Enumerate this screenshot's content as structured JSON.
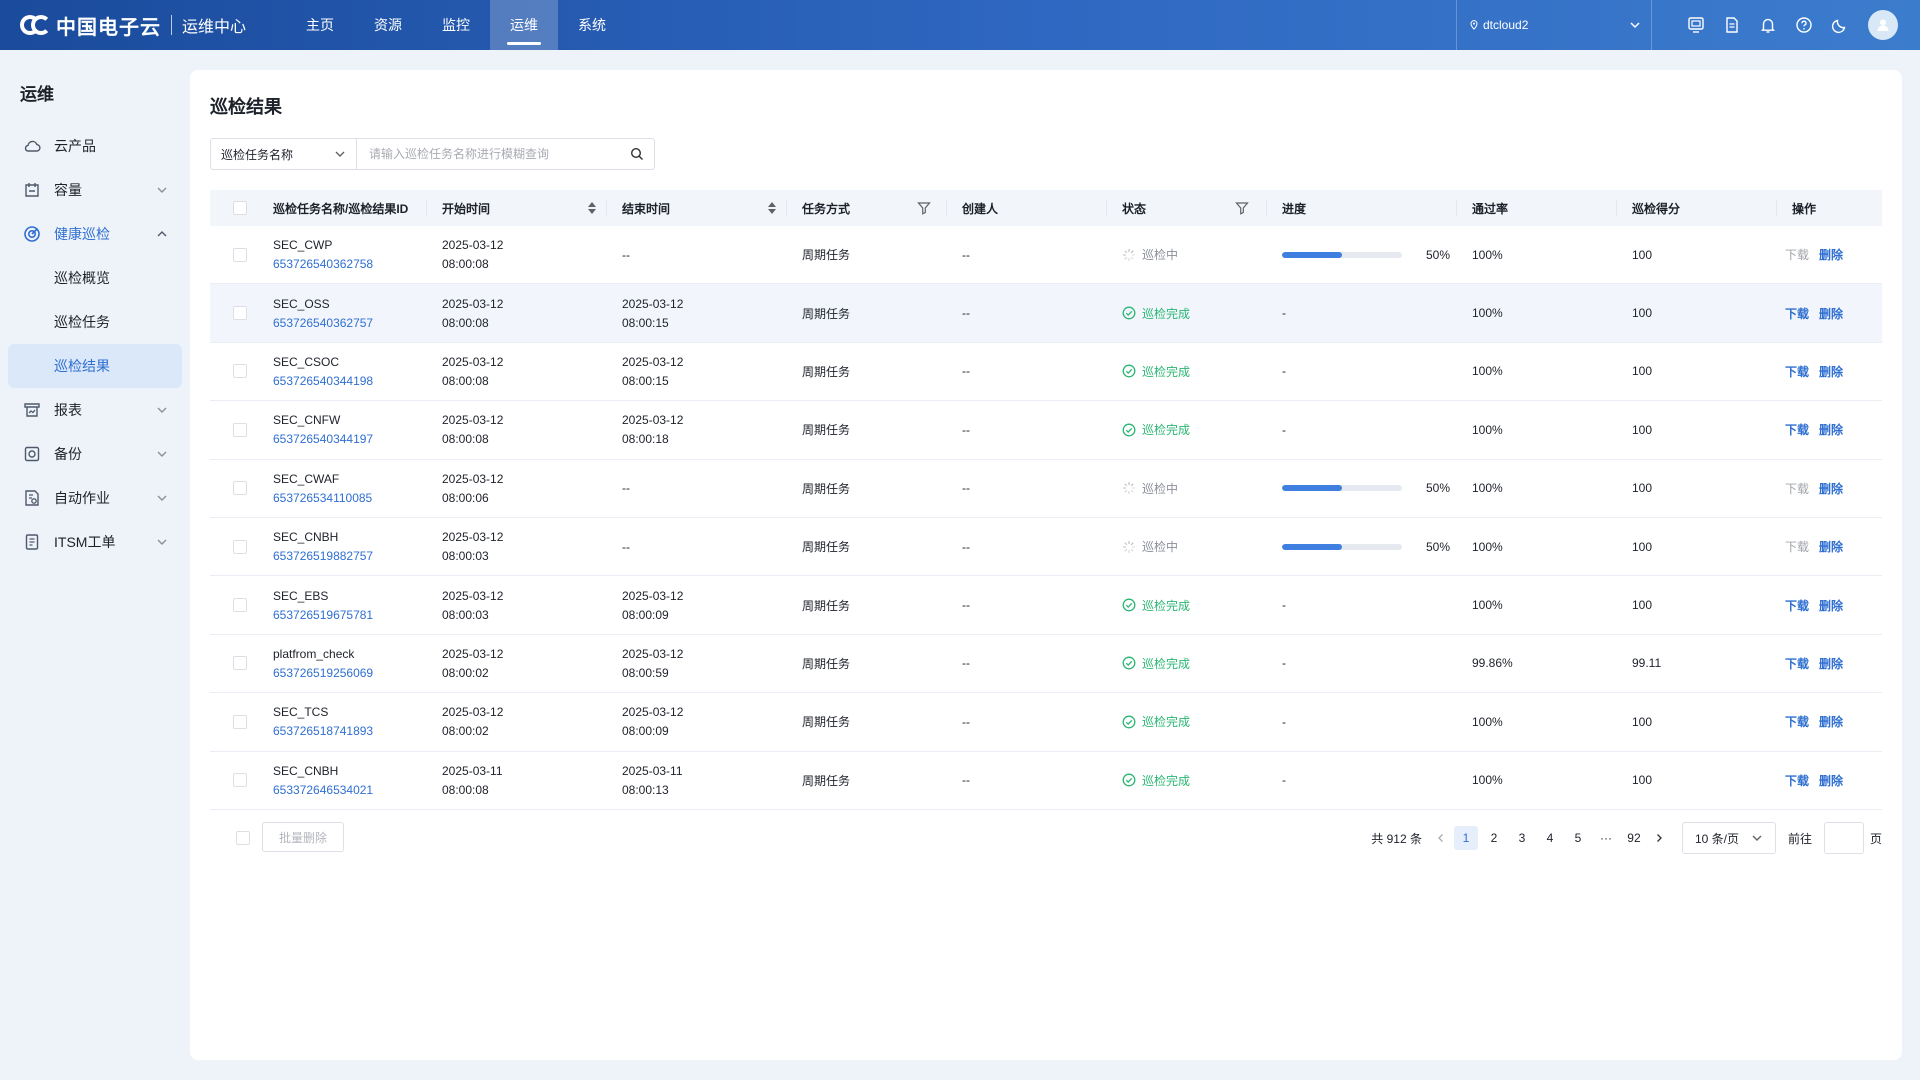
{
  "header": {
    "logo_text": "中国电子云",
    "logo_sub": "运维中心",
    "nav": [
      "主页",
      "资源",
      "监控",
      "运维",
      "系统"
    ],
    "nav_active": 3,
    "account": "dtcloud2",
    "icons": [
      "screen-icon",
      "document-icon",
      "bell-icon",
      "help-icon",
      "moon-icon"
    ]
  },
  "sidebar": {
    "title": "运维",
    "items": [
      {
        "label": "云产品",
        "icon": "cloud-icon"
      },
      {
        "label": "容量",
        "icon": "capacity-icon"
      },
      {
        "label": "健康巡检",
        "icon": "health-check-icon"
      },
      {
        "label": "报表",
        "icon": "report-icon"
      },
      {
        "label": "备份",
        "icon": "backup-icon"
      },
      {
        "label": "自动作业",
        "icon": "automation-icon"
      },
      {
        "label": "ITSM工单",
        "icon": "ticket-icon"
      }
    ],
    "sub_items": [
      "巡检概览",
      "巡检任务",
      "巡检结果"
    ],
    "active_sub": 2
  },
  "page": {
    "title": "巡检结果",
    "filter_select": "巡检任务名称",
    "search_placeholder": "请输入巡检任务名称进行模糊查询"
  },
  "table": {
    "columns": [
      "巡检任务名称/巡检结果ID",
      "开始时间",
      "结束时间",
      "任务方式",
      "创建人",
      "状态",
      "进度",
      "通过率",
      "巡检得分",
      "操作"
    ],
    "rows": [
      {
        "name": "SEC_CWP",
        "id": "653726540362758",
        "start_date": "2025-03-12",
        "start_time": "08:00:08",
        "end_date": "--",
        "end_time": "",
        "mode": "周期任务",
        "creator": "--",
        "status": "巡检中",
        "progress": 50,
        "progress_text": "50%",
        "pass_rate": "100%",
        "score": "100",
        "download": "下载",
        "delete": "删除"
      },
      {
        "name": "SEC_OSS",
        "id": "653726540362757",
        "start_date": "2025-03-12",
        "start_time": "08:00:08",
        "end_date": "2025-03-12",
        "end_time": "08:00:15",
        "mode": "周期任务",
        "creator": "--",
        "status": "巡检完成",
        "progress": null,
        "progress_text": "-",
        "pass_rate": "100%",
        "score": "100",
        "download": "下载",
        "delete": "删除"
      },
      {
        "name": "SEC_CSOC",
        "id": "653726540344198",
        "start_date": "2025-03-12",
        "start_time": "08:00:08",
        "end_date": "2025-03-12",
        "end_time": "08:00:15",
        "mode": "周期任务",
        "creator": "--",
        "status": "巡检完成",
        "progress": null,
        "progress_text": "-",
        "pass_rate": "100%",
        "score": "100",
        "download": "下载",
        "delete": "删除"
      },
      {
        "name": "SEC_CNFW",
        "id": "653726540344197",
        "start_date": "2025-03-12",
        "start_time": "08:00:08",
        "end_date": "2025-03-12",
        "end_time": "08:00:18",
        "mode": "周期任务",
        "creator": "--",
        "status": "巡检完成",
        "progress": null,
        "progress_text": "-",
        "pass_rate": "100%",
        "score": "100",
        "download": "下载",
        "delete": "删除"
      },
      {
        "name": "SEC_CWAF",
        "id": "653726534110085",
        "start_date": "2025-03-12",
        "start_time": "08:00:06",
        "end_date": "--",
        "end_time": "",
        "mode": "周期任务",
        "creator": "--",
        "status": "巡检中",
        "progress": 50,
        "progress_text": "50%",
        "pass_rate": "100%",
        "score": "100",
        "download": "下载",
        "delete": "删除"
      },
      {
        "name": "SEC_CNBH",
        "id": "653726519882757",
        "start_date": "2025-03-12",
        "start_time": "08:00:03",
        "end_date": "--",
        "end_time": "",
        "mode": "周期任务",
        "creator": "--",
        "status": "巡检中",
        "progress": 50,
        "progress_text": "50%",
        "pass_rate": "100%",
        "score": "100",
        "download": "下载",
        "delete": "删除"
      },
      {
        "name": "SEC_EBS",
        "id": "653726519675781",
        "start_date": "2025-03-12",
        "start_time": "08:00:03",
        "end_date": "2025-03-12",
        "end_time": "08:00:09",
        "mode": "周期任务",
        "creator": "--",
        "status": "巡检完成",
        "progress": null,
        "progress_text": "-",
        "pass_rate": "100%",
        "score": "100",
        "download": "下载",
        "delete": "删除"
      },
      {
        "name": "platfrom_check",
        "id": "653726519256069",
        "start_date": "2025-03-12",
        "start_time": "08:00:02",
        "end_date": "2025-03-12",
        "end_time": "08:00:59",
        "mode": "周期任务",
        "creator": "--",
        "status": "巡检完成",
        "progress": null,
        "progress_text": "-",
        "pass_rate": "99.86%",
        "score": "99.11",
        "download": "下载",
        "delete": "删除"
      },
      {
        "name": "SEC_TCS",
        "id": "653726518741893",
        "start_date": "2025-03-12",
        "start_time": "08:00:02",
        "end_date": "2025-03-12",
        "end_time": "08:00:09",
        "mode": "周期任务",
        "creator": "--",
        "status": "巡检完成",
        "progress": null,
        "progress_text": "-",
        "pass_rate": "100%",
        "score": "100",
        "download": "下载",
        "delete": "删除"
      },
      {
        "name": "SEC_CNBH",
        "id": "653372646534021",
        "start_date": "2025-03-11",
        "start_time": "08:00:08",
        "end_date": "2025-03-11",
        "end_time": "08:00:13",
        "mode": "周期任务",
        "creator": "--",
        "status": "巡检完成",
        "progress": null,
        "progress_text": "-",
        "pass_rate": "100%",
        "score": "100",
        "download": "下载",
        "delete": "删除"
      }
    ]
  },
  "footer": {
    "bulk_delete": "批量删除",
    "total": "共 912 条",
    "pages": [
      "1",
      "2",
      "3",
      "4",
      "5",
      "···",
      "92"
    ],
    "current_page": "1",
    "page_size": "10 条/页",
    "goto_label": "前往",
    "page_unit": "页"
  },
  "colors": {
    "primary": "#2f6fd1",
    "success": "#2bb673",
    "progress": "#3f7fe0",
    "topbar": "#2f68c2"
  }
}
